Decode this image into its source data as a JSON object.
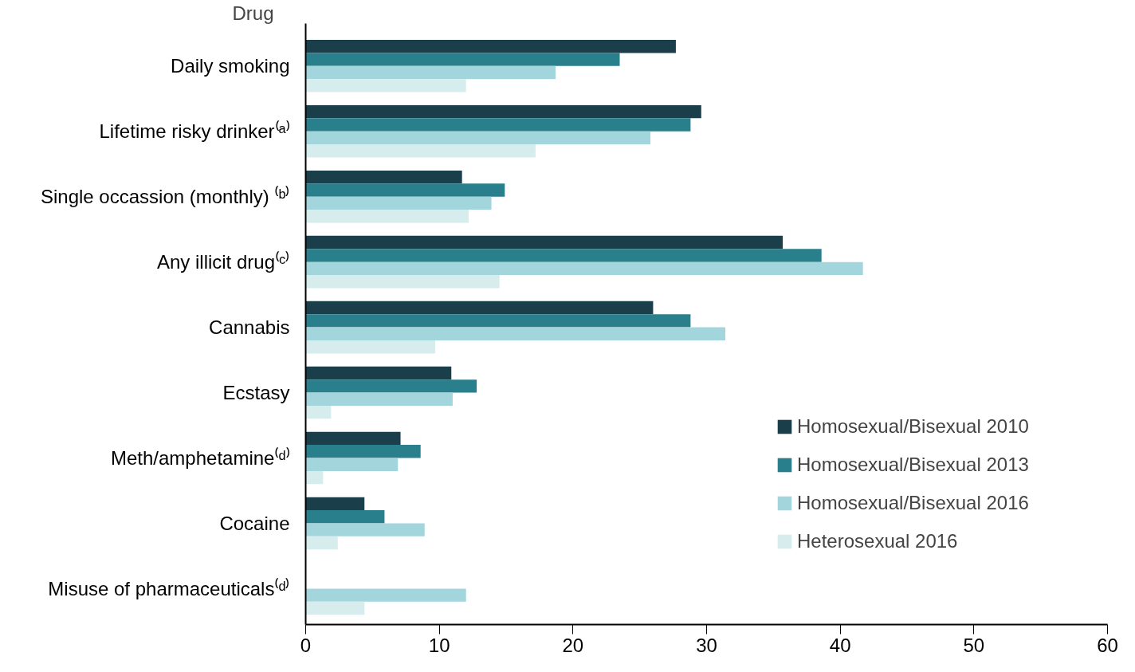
{
  "chart_data": {
    "type": "bar",
    "orientation": "horizontal",
    "ylabel": "Drug",
    "categories": [
      "Daily smoking",
      "Lifetime risky drinker⁽ᵃ⁾",
      "Single occassion (monthly) ⁽ᵇ⁾",
      "Any illicit drug⁽ᶜ⁾",
      "Cannabis",
      "Ecstasy",
      "Meth/amphetamine⁽ᵈ⁾",
      "Cocaine",
      "Misuse of pharmaceuticals⁽ᵈ⁾"
    ],
    "series": [
      {
        "name": "Homosexual/Bisexual 2010",
        "color": "#1b3f4a",
        "values": [
          27.7,
          29.6,
          11.7,
          35.7,
          26.0,
          10.9,
          7.1,
          4.4,
          null
        ]
      },
      {
        "name": "Homosexual/Bisexual 2013",
        "color": "#2a7f8c",
        "values": [
          23.5,
          28.8,
          14.9,
          38.6,
          28.8,
          12.8,
          8.6,
          5.9,
          null
        ]
      },
      {
        "name": "Homosexual/Bisexual 2016",
        "color": "#a3d5dc",
        "values": [
          18.7,
          25.8,
          13.9,
          41.7,
          31.4,
          11.0,
          6.9,
          8.9,
          12.0
        ]
      },
      {
        "name": "Heterosexual 2016",
        "color": "#d7ecec",
        "values": [
          12.0,
          17.2,
          12.2,
          14.5,
          9.7,
          1.9,
          1.3,
          2.4,
          4.4
        ]
      }
    ],
    "xlim": [
      0,
      60
    ],
    "xticks": [
      0,
      10,
      20,
      30,
      40,
      50,
      60
    ],
    "grid": false,
    "legend": "right"
  }
}
